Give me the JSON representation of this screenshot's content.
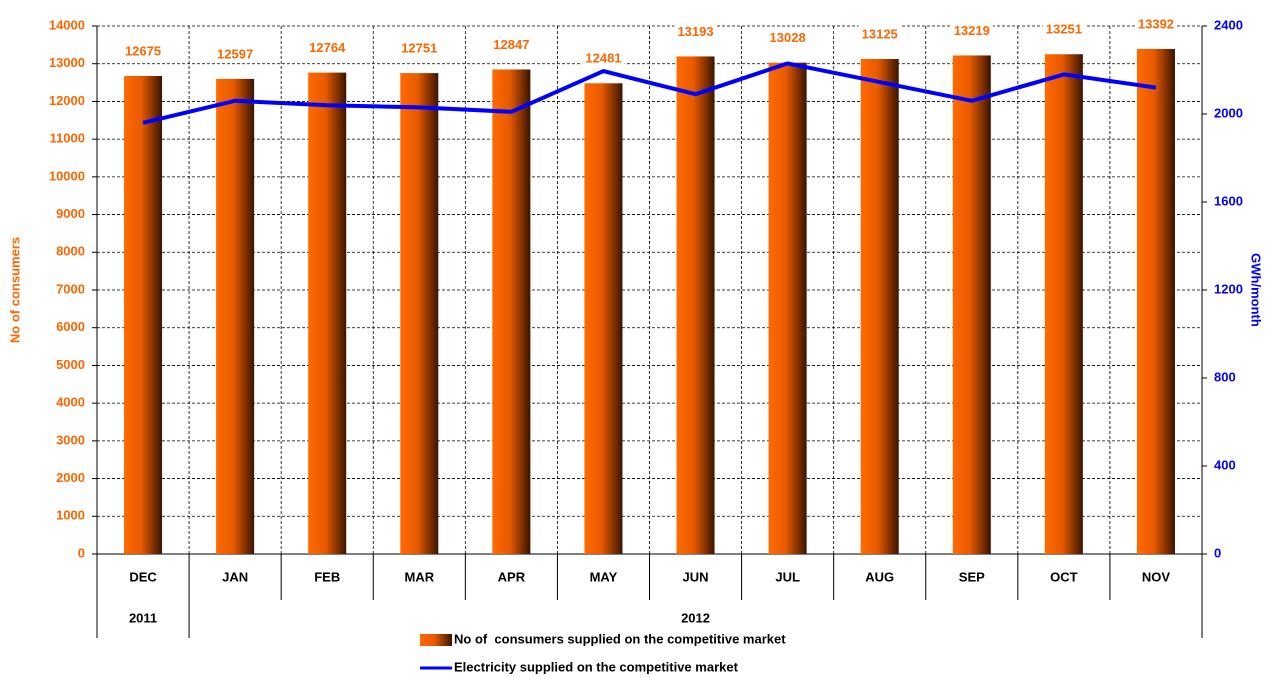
{
  "chart_data": {
    "type": "bar",
    "categories": [
      "DEC",
      "JAN",
      "FEB",
      "MAR",
      "APR",
      "MAY",
      "JUN",
      "JUL",
      "AUG",
      "SEP",
      "OCT",
      "NOV"
    ],
    "x_groups": [
      {
        "label": "2011",
        "count": 1
      },
      {
        "label": "2012",
        "count": 11
      }
    ],
    "series": [
      {
        "name": "No of  consumers supplied on the competitive market",
        "type": "bar",
        "color": "#ff6600",
        "values": [
          12675,
          12597,
          12764,
          12751,
          12847,
          12481,
          13193,
          13028,
          13125,
          13219,
          13251,
          13392
        ]
      },
      {
        "name": "Electricity supplied on the competitive market",
        "type": "line",
        "axis": "y2",
        "color": "#0000ff",
        "values": [
          1960,
          2060,
          2040,
          2030,
          2010,
          2195,
          2090,
          2230,
          2145,
          2060,
          2180,
          2120
        ]
      }
    ],
    "y_label": "No of consumers",
    "y2_label": "GWh/month",
    "ylim": [
      0,
      14000
    ],
    "yticks": [
      0,
      1000,
      2000,
      3000,
      4000,
      5000,
      6000,
      7000,
      8000,
      9000,
      10000,
      11000,
      12000,
      13000,
      14000
    ],
    "y2lim": [
      0,
      2400
    ],
    "y2ticks": [
      0,
      400,
      800,
      1200,
      1600,
      2000,
      2400
    ],
    "grid": true
  }
}
